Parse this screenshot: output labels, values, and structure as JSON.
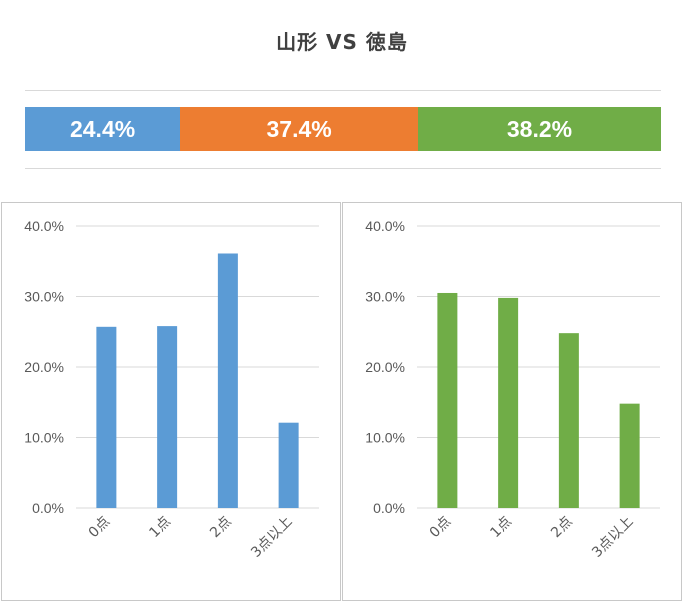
{
  "title": "山形 VS 徳島",
  "ratio_bar": {
    "segments": [
      {
        "label": "24.4%",
        "value": 24.4,
        "color": "#5b9bd5"
      },
      {
        "label": "37.4%",
        "value": 37.4,
        "color": "#ed7d31"
      },
      {
        "label": "38.2%",
        "value": 38.2,
        "color": "#70ad47"
      }
    ]
  },
  "chart_data": [
    {
      "type": "bar",
      "categories": [
        "0点",
        "1点",
        "2点",
        "3点以上"
      ],
      "values": [
        25.7,
        25.8,
        36.1,
        12.1
      ],
      "ylim": [
        0,
        40
      ],
      "ticks": [
        "0.0%",
        "10.0%",
        "20.0%",
        "30.0%",
        "40.0%"
      ],
      "color": "#5b9bd5",
      "grid": true
    },
    {
      "type": "bar",
      "categories": [
        "0点",
        "1点",
        "2点",
        "3点以上"
      ],
      "values": [
        30.5,
        29.8,
        24.8,
        14.8
      ],
      "ylim": [
        0,
        40
      ],
      "ticks": [
        "0.0%",
        "10.0%",
        "20.0%",
        "30.0%",
        "40.0%"
      ],
      "color": "#70ad47",
      "grid": true
    }
  ]
}
